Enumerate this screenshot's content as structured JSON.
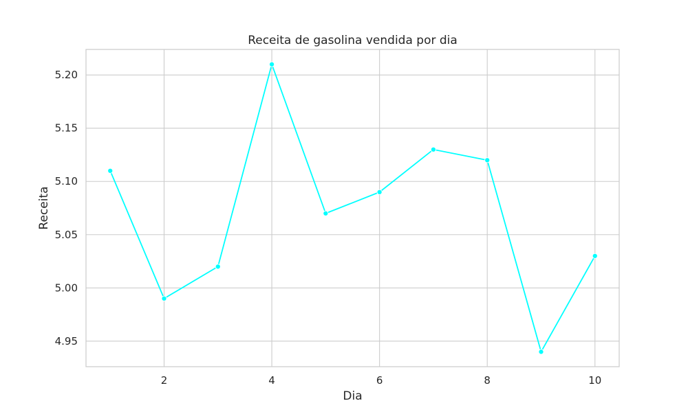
{
  "chart_data": {
    "type": "line",
    "title": "Receita de gasolina vendida por dia",
    "xlabel": "Dia",
    "ylabel": "Receita",
    "xlim": [
      0.55,
      10.45
    ],
    "ylim": [
      4.926,
      5.224
    ],
    "x_ticks": [
      2,
      4,
      6,
      8,
      10
    ],
    "x_tick_labels": [
      "2",
      "4",
      "6",
      "8",
      "10"
    ],
    "y_ticks": [
      4.95,
      5.0,
      5.05,
      5.1,
      5.15,
      5.2
    ],
    "y_tick_labels": [
      "4.95",
      "5.00",
      "5.05",
      "5.10",
      "5.15",
      "5.20"
    ],
    "grid": true,
    "colors": {
      "line": "#00ffff",
      "grid": "#cccccc",
      "frame": "#cccccc",
      "text": "#262626"
    },
    "series": [
      {
        "x": [
          1,
          2,
          3,
          4,
          5,
          6,
          7,
          8,
          9,
          10
        ],
        "values": [
          5.11,
          4.99,
          5.02,
          5.21,
          5.07,
          5.09,
          5.13,
          5.12,
          4.94,
          5.03
        ]
      }
    ]
  }
}
